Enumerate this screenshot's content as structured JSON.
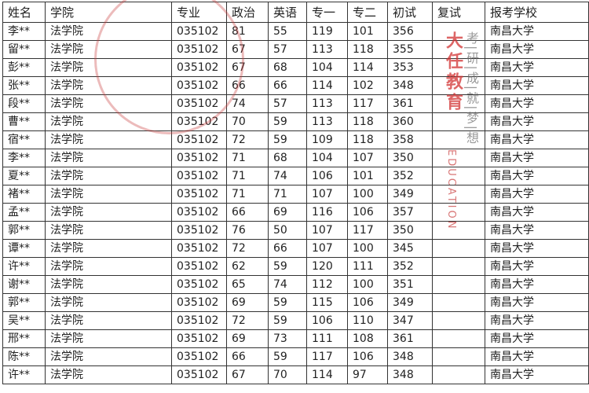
{
  "table": {
    "headers": [
      "姓名",
      "学院",
      "专业",
      "政治",
      "英语",
      "专一",
      "专二",
      "初试",
      "复试",
      "报考学校"
    ],
    "rows": [
      [
        "李**",
        "法学院",
        "035102",
        "81",
        "55",
        "119",
        "101",
        "356",
        "",
        "南昌大学"
      ],
      [
        "留**",
        "法学院",
        "035102",
        "67",
        "57",
        "113",
        "118",
        "355",
        "",
        "南昌大学"
      ],
      [
        "彭**",
        "法学院",
        "035102",
        "67",
        "68",
        "104",
        "114",
        "353",
        "",
        "南昌大学"
      ],
      [
        "张**",
        "法学院",
        "035102",
        "66",
        "66",
        "114",
        "102",
        "348",
        "",
        "南昌大学"
      ],
      [
        "段**",
        "法学院",
        "035102",
        "74",
        "57",
        "113",
        "117",
        "361",
        "",
        "南昌大学"
      ],
      [
        "曹**",
        "法学院",
        "035102",
        "70",
        "59",
        "113",
        "118",
        "360",
        "",
        "南昌大学"
      ],
      [
        "宿**",
        "法学院",
        "035102",
        "72",
        "59",
        "109",
        "118",
        "358",
        "",
        "南昌大学"
      ],
      [
        "李**",
        "法学院",
        "035102",
        "71",
        "68",
        "104",
        "107",
        "350",
        "",
        "南昌大学"
      ],
      [
        "夏**",
        "法学院",
        "035102",
        "71",
        "74",
        "106",
        "101",
        "352",
        "",
        "南昌大学"
      ],
      [
        "褚**",
        "法学院",
        "035102",
        "71",
        "71",
        "107",
        "100",
        "349",
        "",
        "南昌大学"
      ],
      [
        "孟**",
        "法学院",
        "035102",
        "66",
        "69",
        "116",
        "106",
        "357",
        "",
        "南昌大学"
      ],
      [
        "郭**",
        "法学院",
        "035102",
        "76",
        "50",
        "107",
        "117",
        "350",
        "",
        "南昌大学"
      ],
      [
        "谭**",
        "法学院",
        "035102",
        "72",
        "66",
        "107",
        "100",
        "345",
        "",
        "南昌大学"
      ],
      [
        "许**",
        "法学院",
        "035102",
        "62",
        "59",
        "120",
        "111",
        "352",
        "",
        "南昌大学"
      ],
      [
        "谢**",
        "法学院",
        "035102",
        "65",
        "74",
        "112",
        "100",
        "351",
        "",
        "南昌大学"
      ],
      [
        "郭**",
        "法学院",
        "035102",
        "69",
        "59",
        "115",
        "106",
        "349",
        "",
        "南昌大学"
      ],
      [
        "吴**",
        "法学院",
        "035102",
        "72",
        "59",
        "106",
        "110",
        "347",
        "",
        "南昌大学"
      ],
      [
        "邢**",
        "法学院",
        "035102",
        "69",
        "73",
        "111",
        "108",
        "361",
        "",
        "南昌大学"
      ],
      [
        "陈**",
        "法学院",
        "035102",
        "66",
        "59",
        "117",
        "106",
        "348",
        "",
        "南昌大学"
      ],
      [
        "许**",
        "法学院",
        "035102",
        "67",
        "70",
        "114",
        "97",
        "348",
        "",
        "南昌大学"
      ]
    ]
  },
  "watermark": {
    "brand": "大任教育",
    "slogan": "考|研|成|就|梦|想",
    "logo_text": "EDUCATION",
    "color": "#d23232"
  }
}
